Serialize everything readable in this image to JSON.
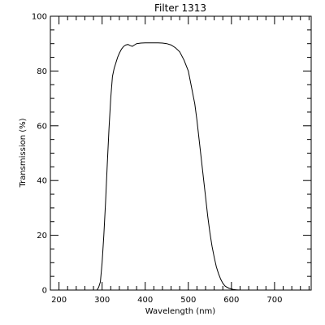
{
  "chart_data": {
    "type": "line",
    "title": "Filter  1313",
    "xlabel": "Wavelength (nm)",
    "ylabel": "Transmission (%)",
    "xlim": [
      180,
      785
    ],
    "ylim": [
      0,
      100
    ],
    "x_ticks": [
      200,
      300,
      400,
      500,
      600,
      700
    ],
    "y_ticks": [
      0,
      20,
      40,
      60,
      80,
      100
    ],
    "x_minor_step": 20,
    "y_minor_step": 5,
    "grid": false,
    "legend": "none",
    "line_color": "#000000",
    "series": [
      {
        "x": [
          180,
          288,
          292,
          296,
          300,
          304,
          308,
          312,
          316,
          320,
          324,
          328,
          332,
          336,
          340,
          345,
          350,
          355,
          360,
          365,
          370,
          375,
          380,
          390,
          400,
          410,
          420,
          430,
          440,
          450,
          460,
          470,
          480,
          490,
          500,
          505,
          510,
          515,
          520,
          525,
          530,
          535,
          540,
          545,
          550,
          555,
          560,
          565,
          570,
          575,
          580,
          585,
          590,
          595,
          600,
          605,
          610,
          615,
          620,
          630,
          640,
          650,
          785
        ],
        "y": [
          0,
          0,
          1,
          3,
          10,
          20,
          32,
          46,
          59,
          70,
          78,
          81,
          83,
          85,
          86.5,
          88,
          89,
          89.5,
          89.7,
          89.3,
          89,
          89.5,
          90,
          90.2,
          90.3,
          90.3,
          90.3,
          90.3,
          90.2,
          90,
          89.5,
          88.5,
          87,
          84,
          80,
          76,
          72,
          68,
          62,
          55,
          48,
          41,
          34,
          27,
          21,
          16,
          12,
          8.5,
          6,
          4,
          2.5,
          1.5,
          1,
          0.6,
          0.4,
          0.2,
          0.1,
          0.05,
          0,
          0,
          0,
          0,
          0
        ]
      }
    ]
  }
}
